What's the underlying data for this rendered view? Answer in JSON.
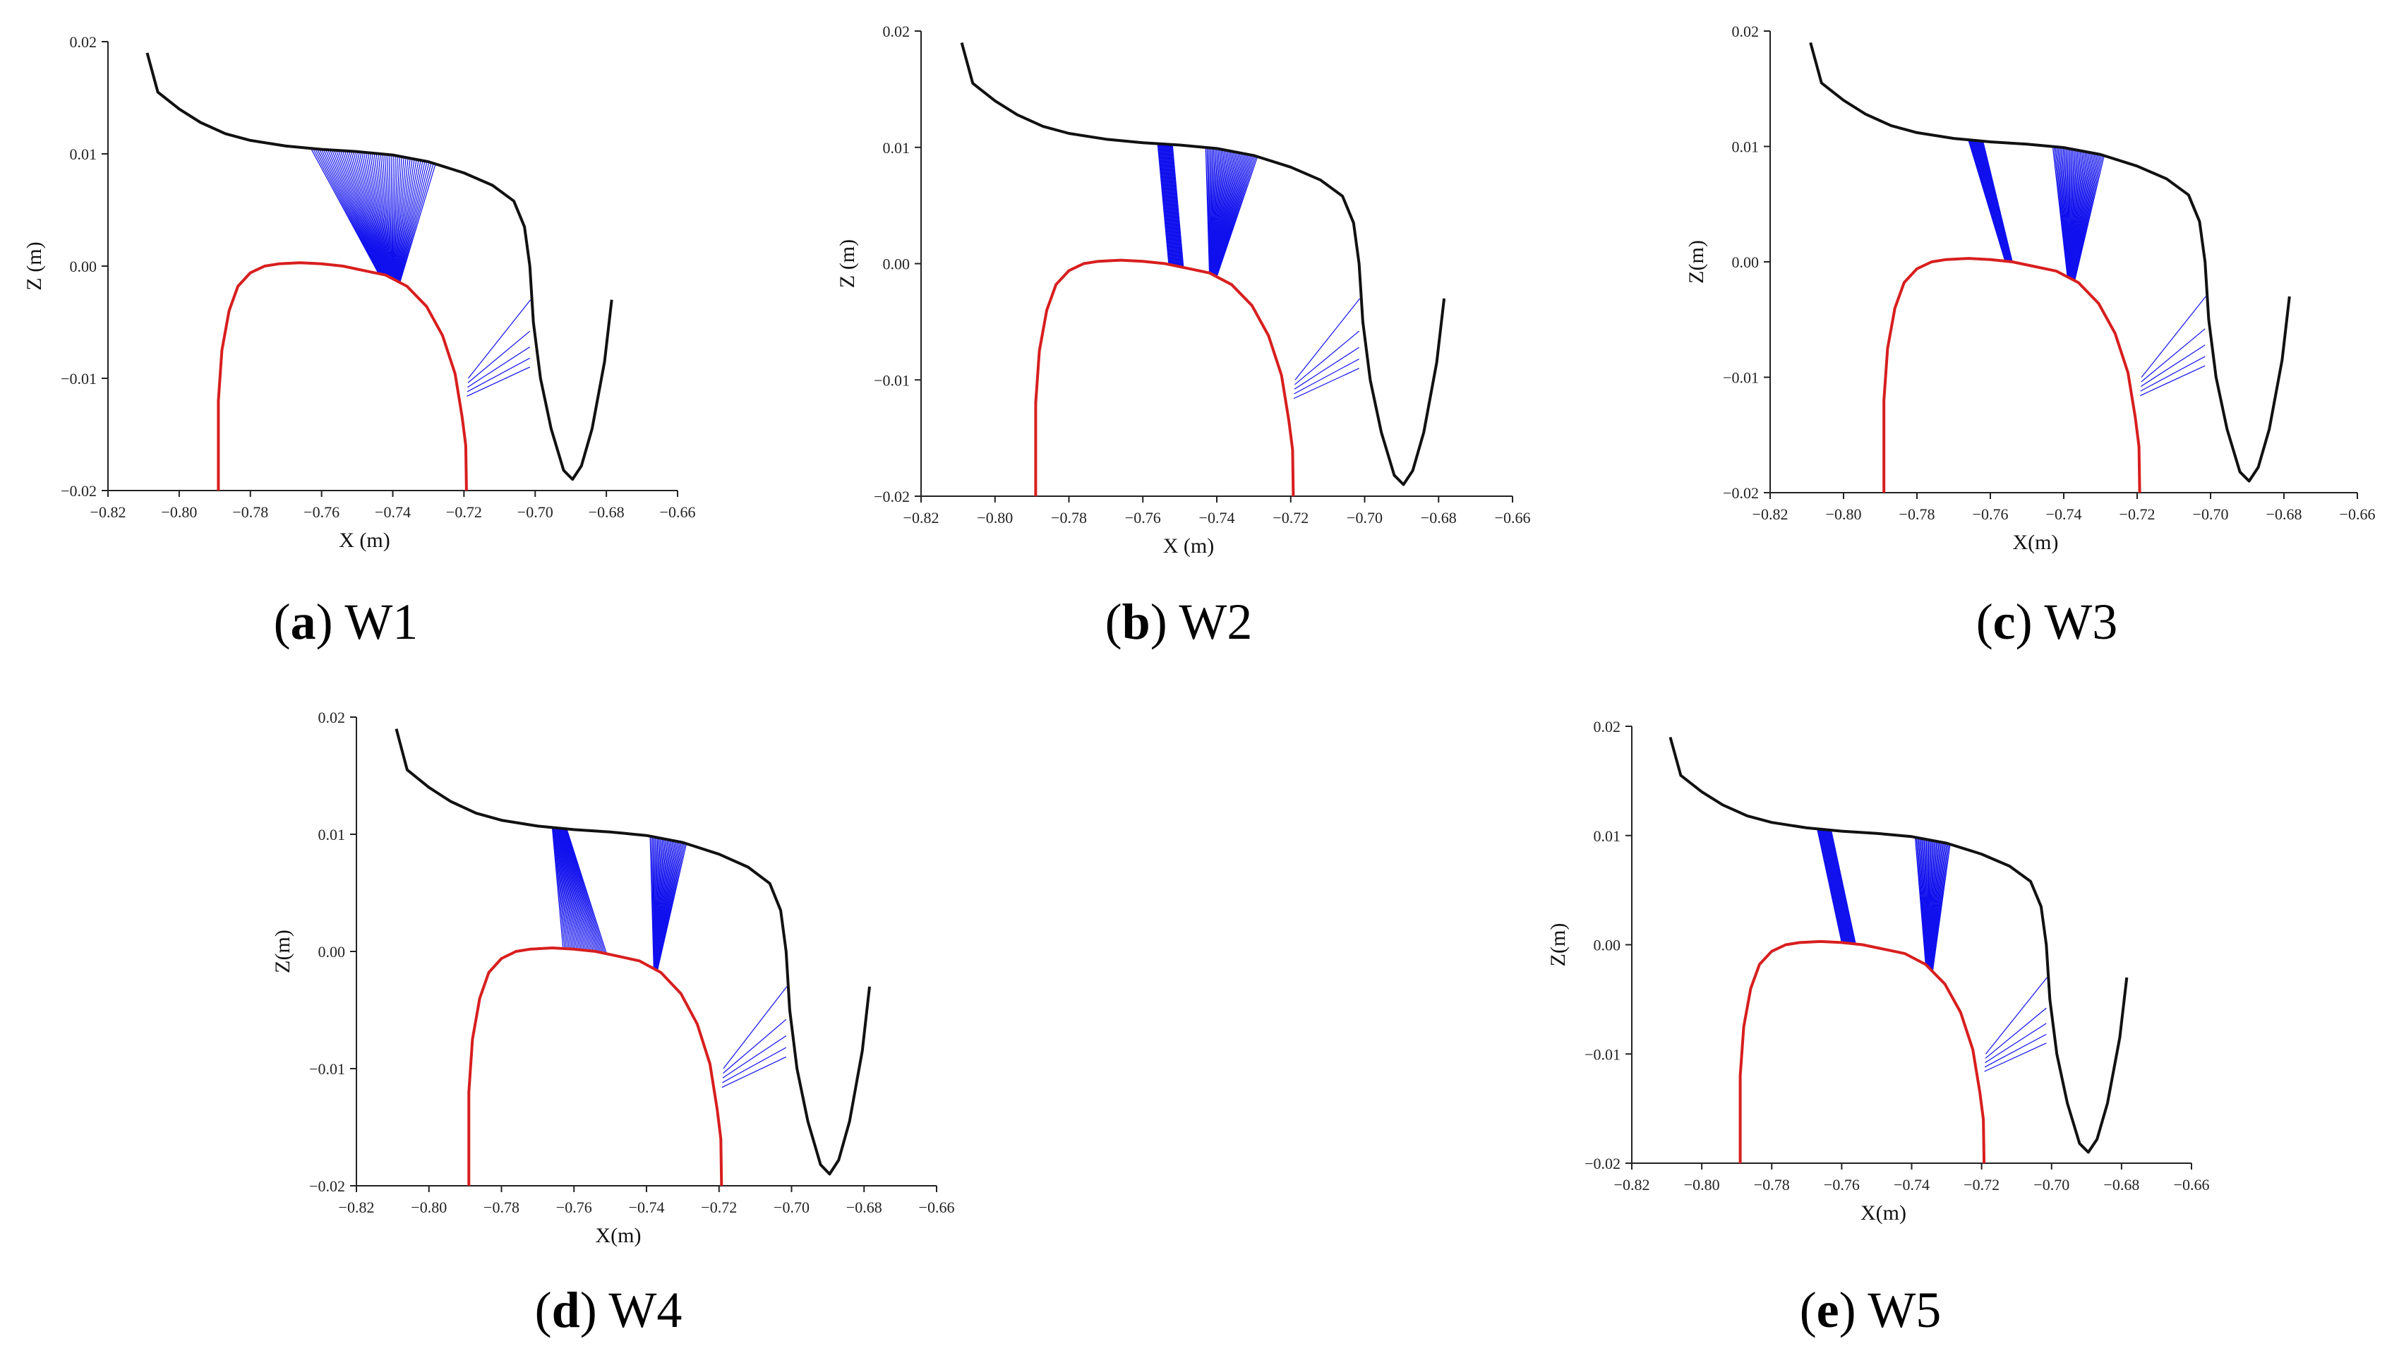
{
  "figure": {
    "colors": {
      "rail_profile": "#d81e1e",
      "wheel_profile": "#111111",
      "contact_lines": "#1010ee",
      "axis": "#222222"
    }
  },
  "chart_data": [
    {
      "type": "line",
      "panel_id": "W1",
      "caption_letter": "a",
      "caption_text": "W1",
      "xlabel": "X (m)",
      "ylabel": "Z (m)",
      "xlim": [
        -0.82,
        -0.66
      ],
      "ylim": [
        -0.02,
        0.02
      ],
      "xticks": [
        "−0.82",
        "−0.80",
        "−0.78",
        "−0.76",
        "−0.74",
        "−0.72",
        "−0.70",
        "−0.68",
        "−0.66"
      ],
      "yticks": [
        "0.02",
        "0.01",
        "0.00",
        "−0.01",
        "−0.02"
      ],
      "contact_bands": [
        {
          "xr0": -0.744,
          "xr1": -0.738,
          "xw0": -0.763,
          "xw1": -0.728,
          "count": 60
        },
        {
          "xr0": -0.7175,
          "xr1": -0.716,
          "xw0": -0.702,
          "xw1": -0.7,
          "count": 5
        }
      ]
    },
    {
      "type": "line",
      "panel_id": "W2",
      "caption_letter": "b",
      "caption_text": "W2",
      "xlabel": "X (m)",
      "ylabel": "Z (m)",
      "xlim": [
        -0.82,
        -0.66
      ],
      "ylim": [
        -0.02,
        0.02
      ],
      "xticks": [
        "−0.82",
        "−0.80",
        "−0.78",
        "−0.76",
        "−0.74",
        "−0.72",
        "−0.70",
        "−0.68",
        "−0.66"
      ],
      "yticks": [
        "0.02",
        "0.01",
        "0.00",
        "−0.01",
        "−0.02"
      ],
      "contact_bands": [
        {
          "xr0": -0.753,
          "xr1": -0.749,
          "xw0": -0.756,
          "xw1": -0.752,
          "count": 22
        },
        {
          "xr0": -0.742,
          "xr1": -0.74,
          "xw0": -0.743,
          "xw1": -0.729,
          "count": 40
        },
        {
          "xr0": -0.7175,
          "xr1": -0.716,
          "xw0": -0.702,
          "xw1": -0.7,
          "count": 5
        }
      ]
    },
    {
      "type": "line",
      "panel_id": "W3",
      "caption_letter": "c",
      "caption_text": "W3",
      "xlabel": "X(m)",
      "ylabel": "Z(m)",
      "xlim": [
        -0.82,
        -0.66
      ],
      "ylim": [
        -0.02,
        0.02
      ],
      "xticks": [
        "−0.82",
        "−0.80",
        "−0.78",
        "−0.76",
        "−0.74",
        "−0.72",
        "−0.70",
        "−0.68",
        "−0.66"
      ],
      "yticks": [
        "0.02",
        "0.01",
        "0.00",
        "−0.01",
        "−0.02"
      ],
      "contact_bands": [
        {
          "xr0": -0.756,
          "xr1": -0.754,
          "xw0": -0.766,
          "xw1": -0.762,
          "count": 22
        },
        {
          "xr0": -0.739,
          "xr1": -0.737,
          "xw0": -0.743,
          "xw1": -0.729,
          "count": 40
        },
        {
          "xr0": -0.7175,
          "xr1": -0.716,
          "xw0": -0.702,
          "xw1": -0.7,
          "count": 5
        }
      ]
    },
    {
      "type": "line",
      "panel_id": "W4",
      "caption_letter": "d",
      "caption_text": "W4",
      "xlabel": "X(m)",
      "ylabel": "Z(m)",
      "xlim": [
        -0.82,
        -0.66
      ],
      "ylim": [
        -0.02,
        0.02
      ],
      "xticks": [
        "−0.82",
        "−0.80",
        "−0.78",
        "−0.76",
        "−0.74",
        "−0.72",
        "−0.70",
        "−0.68",
        "−0.66"
      ],
      "yticks": [
        "0.02",
        "0.01",
        "0.00",
        "−0.01",
        "−0.02"
      ],
      "contact_bands": [
        {
          "xr0": -0.763,
          "xr1": -0.751,
          "xw0": -0.766,
          "xw1": -0.762,
          "count": 30
        },
        {
          "xr0": -0.738,
          "xr1": -0.737,
          "xw0": -0.739,
          "xw1": -0.729,
          "count": 30
        },
        {
          "xr0": -0.7175,
          "xr1": -0.716,
          "xw0": -0.702,
          "xw1": -0.7,
          "count": 5
        }
      ]
    },
    {
      "type": "line",
      "panel_id": "W5",
      "caption_letter": "e",
      "caption_text": "W5",
      "xlabel": "X(m)",
      "ylabel": "Z(m)",
      "xlim": [
        -0.82,
        -0.66
      ],
      "ylim": [
        -0.02,
        0.02
      ],
      "xticks": [
        "−0.82",
        "−0.80",
        "−0.78",
        "−0.76",
        "−0.74",
        "−0.72",
        "−0.70",
        "−0.68",
        "−0.66"
      ],
      "yticks": [
        "0.02",
        "0.01",
        "0.00",
        "−0.01",
        "−0.02"
      ],
      "contact_bands": [
        {
          "xr0": -0.76,
          "xr1": -0.756,
          "xw0": -0.767,
          "xw1": -0.763,
          "count": 22
        },
        {
          "xr0": -0.736,
          "xr1": -0.734,
          "xw0": -0.739,
          "xw1": -0.729,
          "count": 32
        },
        {
          "xr0": -0.7175,
          "xr1": -0.716,
          "xw0": -0.702,
          "xw1": -0.7,
          "count": 5
        }
      ]
    }
  ]
}
